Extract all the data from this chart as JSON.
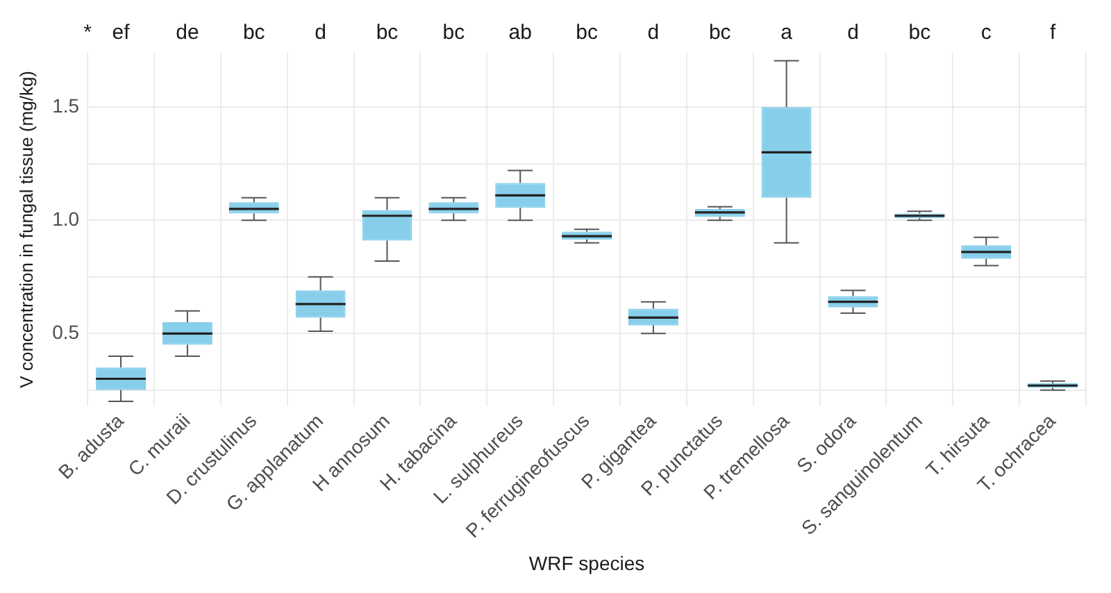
{
  "chart_data": {
    "type": "box",
    "xlabel": "WRF species",
    "ylabel": "V concentration in fungal tissue (mg/kg)",
    "categories": [
      "B. adusta",
      "C. muraii",
      "D. crustulinus",
      "G. applanatum",
      "H annosum",
      "H. tabacina",
      "L. sulphureus",
      "P. ferrugineofuscus",
      "P. gigantea",
      "P. punctatus",
      "P. tremellosa",
      "S. odora",
      "S. sanguinolentum",
      "T. hirsuta",
      "T. ochracea"
    ],
    "color": "#87ceeb",
    "boxes": [
      {
        "low": 0.2,
        "q1": 0.25,
        "median": 0.3,
        "q3": 0.35,
        "high": 0.4
      },
      {
        "low": 0.4,
        "q1": 0.45,
        "median": 0.5,
        "q3": 0.55,
        "high": 0.6
      },
      {
        "low": 1.0,
        "q1": 1.03,
        "median": 1.05,
        "q3": 1.08,
        "high": 1.1
      },
      {
        "low": 0.51,
        "q1": 0.57,
        "median": 0.63,
        "q3": 0.69,
        "high": 0.75
      },
      {
        "low": 0.82,
        "q1": 0.91,
        "median": 1.02,
        "q3": 1.045,
        "high": 1.1
      },
      {
        "low": 1.0,
        "q1": 1.03,
        "median": 1.05,
        "q3": 1.08,
        "high": 1.1
      },
      {
        "low": 1.0,
        "q1": 1.055,
        "median": 1.11,
        "q3": 1.165,
        "high": 1.22
      },
      {
        "low": 0.9,
        "q1": 0.915,
        "median": 0.93,
        "q3": 0.95,
        "high": 0.96
      },
      {
        "low": 0.5,
        "q1": 0.535,
        "median": 0.57,
        "q3": 0.61,
        "high": 0.64
      },
      {
        "low": 1.0,
        "q1": 1.015,
        "median": 1.035,
        "q3": 1.05,
        "high": 1.06
      },
      {
        "low": 0.9,
        "q1": 1.1,
        "median": 1.3,
        "q3": 1.5,
        "high": 1.705
      },
      {
        "low": 0.59,
        "q1": 0.615,
        "median": 0.64,
        "q3": 0.665,
        "high": 0.69
      },
      {
        "low": 1.0,
        "q1": 1.01,
        "median": 1.02,
        "q3": 1.03,
        "high": 1.04
      },
      {
        "low": 0.8,
        "q1": 0.83,
        "median": 0.86,
        "q3": 0.89,
        "high": 0.925
      },
      {
        "low": 0.25,
        "q1": 0.26,
        "median": 0.27,
        "q3": 0.28,
        "high": 0.29
      }
    ],
    "ylim": [
      0.18,
      1.74
    ],
    "yticks": [
      {
        "value": 0.25,
        "label": null
      },
      {
        "value": 0.5,
        "label": "0.5"
      },
      {
        "value": 0.75,
        "label": null
      },
      {
        "value": 1.0,
        "label": "1.0"
      },
      {
        "value": 1.25,
        "label": null
      },
      {
        "value": 1.5,
        "label": "1.5"
      }
    ],
    "grid": true,
    "annotations": [
      "*",
      "ef",
      "de",
      "bc",
      "d",
      "bc",
      "bc",
      "ab",
      "bc",
      "d",
      "bc",
      "a",
      "d",
      "bc",
      "c",
      "f"
    ]
  }
}
